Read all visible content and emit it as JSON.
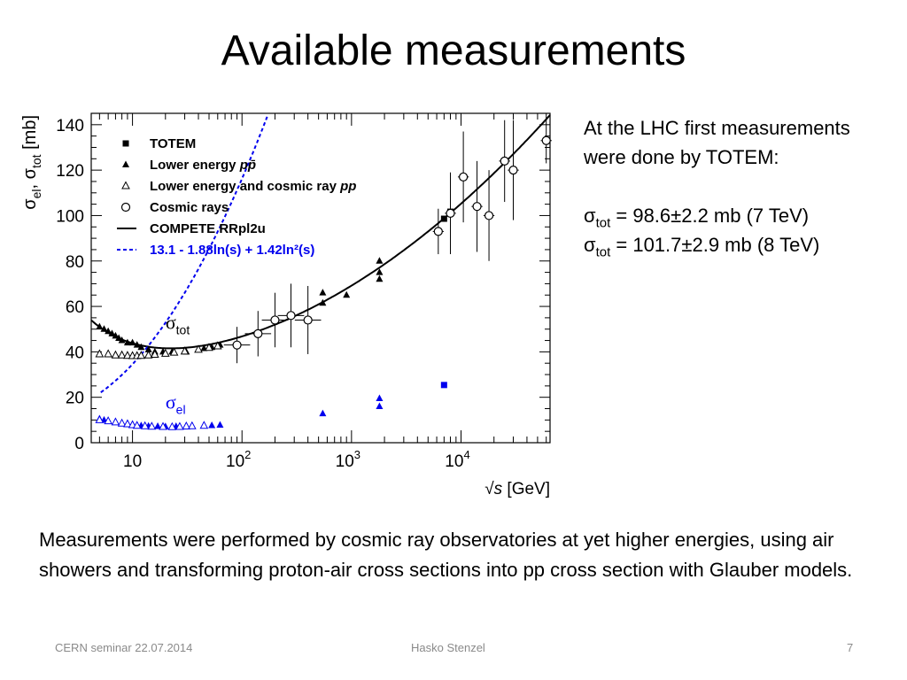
{
  "slide": {
    "title": "Available measurements",
    "side_text": {
      "intro": "At the LHC first measurements were done by TOTEM:",
      "lines": [
        {
          "symbol": "σ",
          "sub": "tot",
          "text": " = 98.6±2.2 mb (7 TeV)"
        },
        {
          "symbol": "σ",
          "sub": "tot",
          "text": " = 101.7±2.9 mb (8 TeV)"
        }
      ]
    },
    "bottom_text": "Measurements were performed by cosmic ray observatories at yet higher energies, using air showers and transforming proton-air cross sections into pp cross section with Glauber models.",
    "footer": {
      "left": "CERN seminar  22.07.2014",
      "center": "Hasko Stenzel",
      "right": "7"
    }
  },
  "chart_data": {
    "type": "scatter",
    "x_scale": "log",
    "xlim": [
      4.2,
      65000
    ],
    "ylim": [
      0,
      145
    ],
    "y_ticks": [
      0,
      20,
      40,
      60,
      80,
      100,
      120,
      140
    ],
    "x_tick_labels": [
      {
        "value": 10,
        "base": "10",
        "exp": ""
      },
      {
        "value": 100,
        "base": "10",
        "exp": "2"
      },
      {
        "value": 1000,
        "base": "10",
        "exp": "3"
      },
      {
        "value": 10000,
        "base": "10",
        "exp": "4"
      }
    ],
    "xlabel": {
      "root": "√",
      "var": "s",
      "unit": " [GeV]"
    },
    "ylabel": {
      "sym1": "σ",
      "sub1": "el",
      "sep": ", ",
      "sym2": "σ",
      "sub2": "tot",
      "unit": " [mb]"
    },
    "annotations": {
      "tot": {
        "symbol": "σ",
        "sub": "tot",
        "x": 16,
        "y": 50
      },
      "el": {
        "symbol": "σ",
        "sub": "el",
        "x": 16,
        "y": 15
      }
    },
    "legend": {
      "placement": "top-left",
      "entries": [
        {
          "label": "TOTEM",
          "marker": "filled-square",
          "color": "#000000"
        },
        {
          "label": "Lower energy ",
          "label_em": "pp̄",
          "marker": "filled-triangle",
          "color": "#000000"
        },
        {
          "label": "Lower energy and cosmic ray ",
          "label_em": "pp",
          "marker": "open-triangle",
          "color": "#000000"
        },
        {
          "label": "Cosmic rays",
          "marker": "open-circle",
          "color": "#000000"
        },
        {
          "label": "COMPETE RRpl2u",
          "marker": "solid-line",
          "color": "#000000"
        },
        {
          "label": "13.1 - 1.88ln(s) + 1.42ln²(s)",
          "marker": "dashed-line",
          "color": "#0000ee"
        }
      ]
    },
    "series": [
      {
        "name": "TOTEM",
        "marker": "filled-square",
        "color": "#000000",
        "x": [
          7000,
          8000
        ],
        "y": [
          98.6,
          101.7
        ]
      },
      {
        "name": "Lower energy pp̄",
        "marker": "filled-triangle",
        "color": "#000000",
        "x": [
          5,
          5.5,
          6,
          6.5,
          7,
          7.5,
          8,
          9,
          10,
          11,
          12,
          14,
          16,
          19,
          23,
          31,
          45,
          53,
          63,
          546,
          546,
          900,
          1800,
          1800,
          1800
        ],
        "y": [
          51,
          50,
          49,
          48,
          47,
          46,
          45,
          44,
          44,
          43,
          42,
          41,
          40,
          40,
          40,
          40,
          41.5,
          42,
          43,
          61.5,
          66,
          65,
          72,
          80,
          75
        ]
      },
      {
        "name": "Lower energy and cosmic ray pp",
        "marker": "open-triangle",
        "color": "#000000",
        "x": [
          5,
          6,
          7,
          8,
          9,
          10,
          11,
          12,
          14,
          16,
          20,
          24,
          30,
          40,
          50,
          60
        ],
        "y": [
          39,
          39,
          38.5,
          38.5,
          38.3,
          38.2,
          38.2,
          38.3,
          38.5,
          38.8,
          39.2,
          39.7,
          40.2,
          41,
          41.8,
          42.5
        ]
      },
      {
        "name": "Cosmic rays",
        "marker": "open-circle",
        "color": "#000000",
        "x": [
          90,
          140,
          200,
          280,
          400,
          6200,
          8000,
          10500,
          14000,
          18000,
          25000,
          30000,
          60000
        ],
        "y": [
          43,
          48,
          54,
          56,
          54,
          93,
          101,
          117,
          104,
          100,
          124,
          120,
          133
        ]
      },
      {
        "name": "Lower energy pp̄ σel",
        "marker": "filled-triangle",
        "color": "#0000ee",
        "x": [
          5,
          5.5,
          6,
          7,
          8,
          9,
          10,
          12,
          14,
          17,
          20,
          25,
          31,
          45,
          53,
          63,
          546,
          1800,
          1800
        ],
        "y": [
          10.5,
          10,
          9.5,
          9,
          8.5,
          8,
          7.8,
          7.5,
          7.3,
          7.2,
          7.1,
          7.2,
          7.3,
          7.5,
          7.6,
          7.8,
          12.8,
          16,
          19.5
        ]
      },
      {
        "name": "Lower energy and cosmic ray pp σel",
        "marker": "open-triangle",
        "color": "#0000ee",
        "x": [
          5,
          6,
          7,
          8,
          9,
          10,
          11,
          13,
          15,
          19,
          23,
          27,
          31,
          35,
          45
        ],
        "y": [
          10,
          9.5,
          9,
          8.5,
          8.2,
          7.8,
          7.5,
          7.3,
          7.1,
          7.0,
          6.9,
          7.0,
          7.2,
          7.3,
          7.5
        ]
      },
      {
        "name": "TOTEM σel",
        "marker": "filled-square",
        "color": "#0000ee",
        "x": [
          7000
        ],
        "y": [
          25.4
        ]
      }
    ],
    "curves": [
      {
        "name": "COMPETE RRpl2u",
        "style": "solid",
        "color": "#000000",
        "formula": "compete"
      },
      {
        "name": "13.1 - 1.88ln(s) + 1.42ln²(s)",
        "style": "dashed",
        "color": "#0000ee",
        "formula": "el_fit",
        "coeffs": [
          13.1,
          -1.88,
          1.42
        ]
      }
    ]
  }
}
